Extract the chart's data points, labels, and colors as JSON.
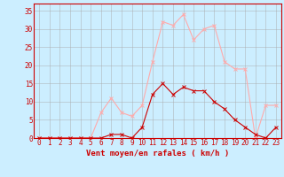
{
  "x": [
    0,
    1,
    2,
    3,
    4,
    5,
    6,
    7,
    8,
    9,
    10,
    11,
    12,
    13,
    14,
    15,
    16,
    17,
    18,
    19,
    20,
    21,
    22,
    23
  ],
  "wind_avg": [
    0,
    0,
    0,
    0,
    0,
    0,
    0,
    1,
    1,
    0,
    3,
    12,
    15,
    12,
    14,
    13,
    13,
    10,
    8,
    5,
    3,
    1,
    0,
    3
  ],
  "wind_gust": [
    0,
    0,
    0,
    0,
    0,
    0,
    7,
    11,
    7,
    6,
    9,
    21,
    32,
    31,
    34,
    27,
    30,
    31,
    21,
    19,
    19,
    0,
    9,
    9
  ],
  "wind_avg_color": "#cc0000",
  "wind_gust_color": "#ffaaaa",
  "bg_color": "#cceeff",
  "grid_color": "#aaaaaa",
  "axis_color": "#cc0000",
  "text_color": "#cc0000",
  "xlabel": "Vent moyen/en rafales ( km/h )",
  "ylim": [
    0,
    37
  ],
  "yticks": [
    0,
    5,
    10,
    15,
    20,
    25,
    30,
    35
  ],
  "tick_fontsize": 5.5,
  "label_fontsize": 6.5
}
